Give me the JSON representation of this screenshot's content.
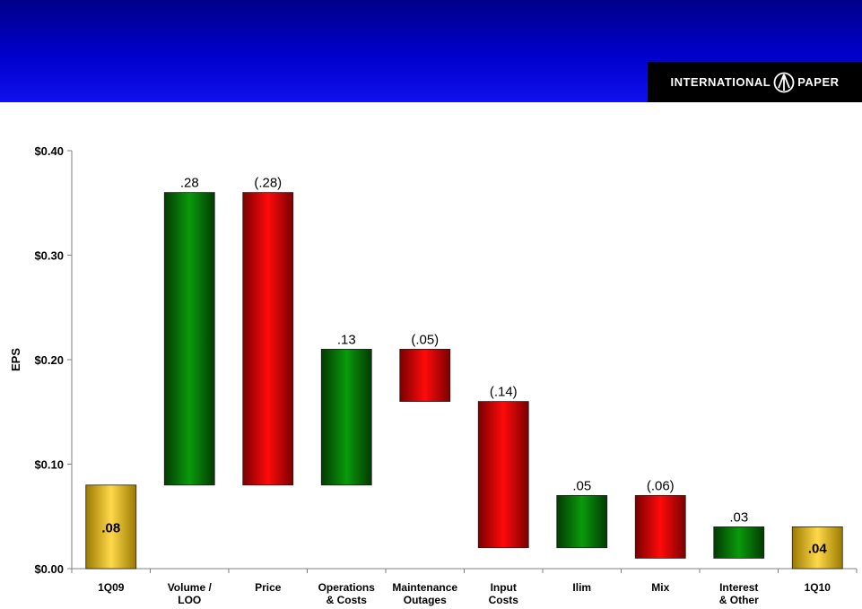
{
  "header": {
    "logo_left": "INTERNATIONAL",
    "logo_right": "PAPER",
    "logo_icon": "international-paper-emblem-icon"
  },
  "colors": {
    "total_bar": "#e8c020",
    "increase_bar": "#0a8a0a",
    "decrease_bar": "#e00000",
    "header_blue": "#0000cc"
  },
  "chart_data": {
    "type": "bar",
    "subtype": "waterfall",
    "ylabel": "EPS",
    "ylim": [
      0,
      0.4
    ],
    "yticks": [
      0,
      0.1,
      0.2,
      0.3,
      0.4
    ],
    "ytick_labels": [
      "$0.00",
      "$0.10",
      "$0.20",
      "$0.30",
      "$0.40"
    ],
    "grid": false,
    "bars": [
      {
        "category": [
          "1Q09"
        ],
        "kind": "total",
        "start": 0,
        "end": 0.08,
        "label": ".08"
      },
      {
        "category": [
          "Volume /",
          "LOO"
        ],
        "kind": "increase",
        "start": 0.08,
        "end": 0.36,
        "label": ".28"
      },
      {
        "category": [
          "Price"
        ],
        "kind": "decrease",
        "start": 0.36,
        "end": 0.08,
        "label": "(.28)"
      },
      {
        "category": [
          "Operations",
          "& Costs"
        ],
        "kind": "increase",
        "start": 0.08,
        "end": 0.21,
        "label": ".13"
      },
      {
        "category": [
          "Maintenance",
          "Outages"
        ],
        "kind": "decrease",
        "start": 0.21,
        "end": 0.16,
        "label": "(.05)"
      },
      {
        "category": [
          "Input",
          "Costs"
        ],
        "kind": "decrease",
        "start": 0.16,
        "end": 0.02,
        "label": "(.14)"
      },
      {
        "category": [
          "Ilim"
        ],
        "kind": "increase",
        "start": 0.02,
        "end": 0.07,
        "label": ".05"
      },
      {
        "category": [
          "Mix"
        ],
        "kind": "decrease",
        "start": 0.07,
        "end": 0.01,
        "label": "(.06)"
      },
      {
        "category": [
          "Interest",
          "& Other"
        ],
        "kind": "increase",
        "start": 0.01,
        "end": 0.04,
        "label": ".03"
      },
      {
        "category": [
          "1Q10"
        ],
        "kind": "total",
        "start": 0,
        "end": 0.04,
        "label": ".04"
      }
    ]
  }
}
